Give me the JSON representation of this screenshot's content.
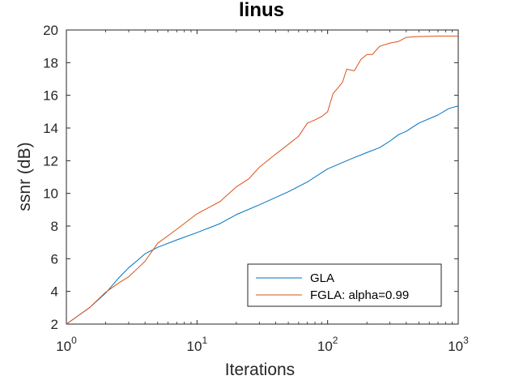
{
  "chart_data": {
    "type": "line",
    "title": "linus",
    "xlabel": "Iterations",
    "ylabel": "ssnr (dB)",
    "xscale": "log",
    "xlim": [
      1,
      1000
    ],
    "ylim": [
      2,
      20
    ],
    "xticks": [
      {
        "value": 1,
        "base": "10",
        "exp": "0"
      },
      {
        "value": 10,
        "base": "10",
        "exp": "1"
      },
      {
        "value": 100,
        "base": "10",
        "exp": "2"
      },
      {
        "value": 1000,
        "base": "10",
        "exp": "3"
      }
    ],
    "yticks": [
      2,
      4,
      6,
      8,
      10,
      12,
      14,
      16,
      18,
      20
    ],
    "legend_position": "bottom-right",
    "grid": false,
    "series": [
      {
        "name": "GLA",
        "color": "#0072BD",
        "points": [
          [
            1,
            2.0
          ],
          [
            1.5,
            3.0
          ],
          [
            2,
            3.9
          ],
          [
            2.5,
            4.8
          ],
          [
            3,
            5.45
          ],
          [
            3.5,
            5.9
          ],
          [
            4,
            6.3
          ],
          [
            5,
            6.7
          ],
          [
            7,
            7.15
          ],
          [
            10,
            7.6
          ],
          [
            15,
            8.15
          ],
          [
            20,
            8.7
          ],
          [
            30,
            9.3
          ],
          [
            50,
            10.1
          ],
          [
            70,
            10.7
          ],
          [
            100,
            11.5
          ],
          [
            150,
            12.1
          ],
          [
            200,
            12.5
          ],
          [
            250,
            12.8
          ],
          [
            300,
            13.2
          ],
          [
            350,
            13.6
          ],
          [
            400,
            13.8
          ],
          [
            500,
            14.3
          ],
          [
            700,
            14.8
          ],
          [
            850,
            15.2
          ],
          [
            1000,
            15.35
          ]
        ]
      },
      {
        "name": "FGLA: alpha=0.99",
        "color": "#D95319",
        "points": [
          [
            1,
            2.0
          ],
          [
            1.5,
            3.0
          ],
          [
            2,
            3.95
          ],
          [
            2.5,
            4.5
          ],
          [
            3,
            4.9
          ],
          [
            3.5,
            5.4
          ],
          [
            4,
            5.85
          ],
          [
            5,
            6.95
          ],
          [
            7,
            7.8
          ],
          [
            10,
            8.75
          ],
          [
            15,
            9.5
          ],
          [
            20,
            10.4
          ],
          [
            25,
            10.9
          ],
          [
            30,
            11.6
          ],
          [
            40,
            12.4
          ],
          [
            50,
            13.0
          ],
          [
            60,
            13.5
          ],
          [
            70,
            14.3
          ],
          [
            80,
            14.5
          ],
          [
            90,
            14.7
          ],
          [
            100,
            15.0
          ],
          [
            110,
            16.1
          ],
          [
            130,
            16.8
          ],
          [
            140,
            17.6
          ],
          [
            160,
            17.5
          ],
          [
            180,
            18.2
          ],
          [
            200,
            18.5
          ],
          [
            220,
            18.5
          ],
          [
            250,
            19.0
          ],
          [
            300,
            19.2
          ],
          [
            350,
            19.3
          ],
          [
            400,
            19.55
          ],
          [
            500,
            19.6
          ],
          [
            700,
            19.62
          ],
          [
            1000,
            19.62
          ]
        ]
      }
    ]
  }
}
